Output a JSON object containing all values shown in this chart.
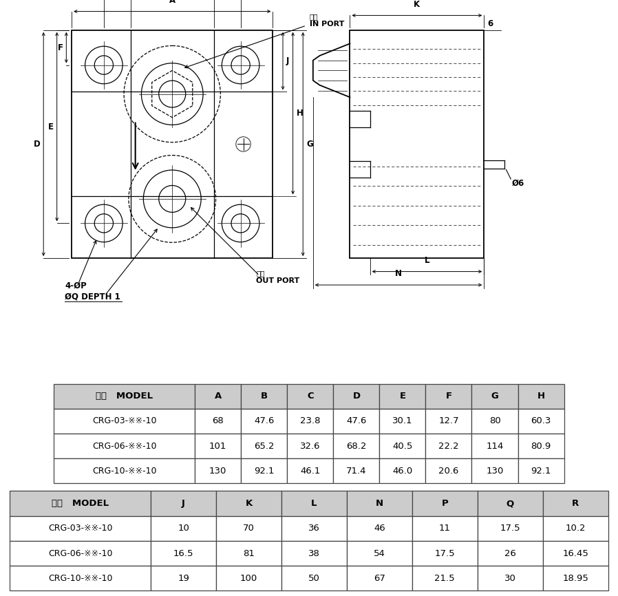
{
  "table1_headers": [
    "型式   MODEL",
    "A",
    "B",
    "C",
    "D",
    "E",
    "F",
    "G",
    "H"
  ],
  "table1_rows": [
    [
      "CRG-03-※※-10",
      "68",
      "47.6",
      "23.8",
      "47.6",
      "30.1",
      "12.7",
      "80",
      "60.3"
    ],
    [
      "CRG-06-※※-10",
      "101",
      "65.2",
      "32.6",
      "68.2",
      "40.5",
      "22.2",
      "114",
      "80.9"
    ],
    [
      "CRG-10-※※-10",
      "130",
      "92.1",
      "46.1",
      "71.4",
      "46.0",
      "20.6",
      "130",
      "92.1"
    ]
  ],
  "table2_headers": [
    "型式   MODEL",
    "J",
    "K",
    "L",
    "N",
    "P",
    "Q",
    "R"
  ],
  "table2_rows": [
    [
      "CRG-03-※※-10",
      "10",
      "70",
      "36",
      "46",
      "11",
      "17.5",
      "10.2"
    ],
    [
      "CRG-06-※※-10",
      "16.5",
      "81",
      "38",
      "54",
      "17.5",
      "26",
      "16.45"
    ],
    [
      "CRG-10-※※-10",
      "19",
      "100",
      "50",
      "67",
      "21.5",
      "30",
      "18.95"
    ]
  ],
  "bg_color": "#ffffff",
  "table_header_bg": "#cccccc",
  "table_border_color": "#444444",
  "drawing_color": "#000000"
}
